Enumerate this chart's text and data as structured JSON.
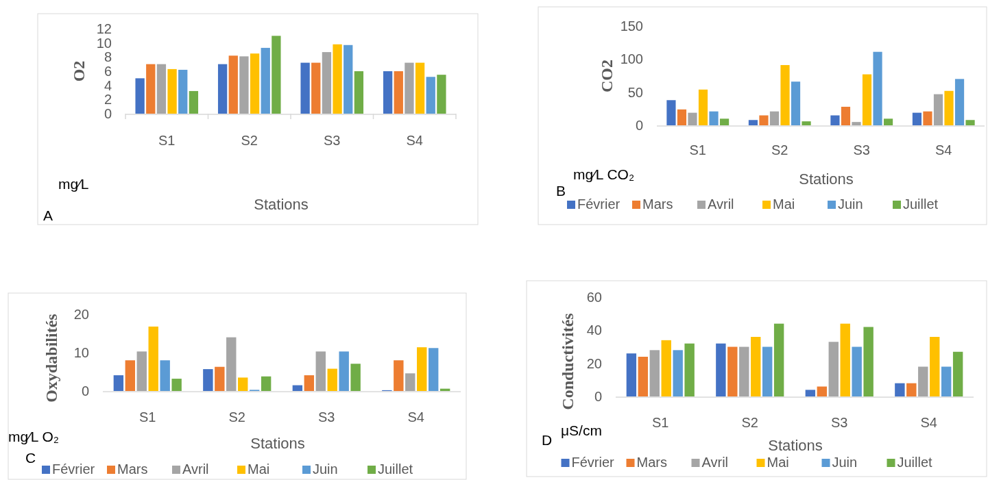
{
  "chart_data": [
    {
      "type": "bar",
      "ylabel": "O2",
      "xlabel": "Stations",
      "categories": [
        "S1",
        "S2",
        "S3",
        "S4"
      ],
      "ylim": [
        0,
        12
      ],
      "yticks": [
        0,
        2,
        4,
        6,
        8,
        10,
        12
      ],
      "grid": false,
      "legend": false,
      "annotations": [
        "mg⁄L",
        "A"
      ],
      "series": [
        {
          "color": "#4472c4",
          "values": [
            5,
            7,
            7.2,
            6
          ]
        },
        {
          "color": "#ed7d31",
          "values": [
            7,
            8.2,
            7.2,
            6
          ]
        },
        {
          "color": "#a5a5a5",
          "values": [
            7,
            8.1,
            8.7,
            7.2
          ]
        },
        {
          "color": "#ffc000",
          "values": [
            6.3,
            8.5,
            9.8,
            7.2
          ]
        },
        {
          "color": "#5b9bd5",
          "values": [
            6.2,
            9.3,
            9.7,
            5.2
          ]
        },
        {
          "color": "#70ad47",
          "values": [
            3.2,
            11,
            6,
            5.5
          ]
        }
      ]
    },
    {
      "type": "bar",
      "ylabel": "CO2",
      "xlabel": "Stations",
      "categories": [
        "S1",
        "S2",
        "S3",
        "S4"
      ],
      "ylim": [
        0,
        150
      ],
      "yticks": [
        0,
        50,
        100,
        150
      ],
      "grid": false,
      "legend": "bottom",
      "annotations": [
        "mg⁄L CO₂",
        "B"
      ],
      "series": [
        {
          "name": "Février",
          "color": "#4472c4",
          "values": [
            38,
            8,
            15,
            19
          ]
        },
        {
          "name": "Mars",
          "color": "#ed7d31",
          "values": [
            24,
            15,
            28,
            21
          ]
        },
        {
          "name": "Avril",
          "color": "#a5a5a5",
          "values": [
            19,
            21,
            5,
            47
          ]
        },
        {
          "name": "Mai",
          "color": "#ffc000",
          "values": [
            54,
            91,
            77,
            52
          ]
        },
        {
          "name": "Juin",
          "color": "#5b9bd5",
          "values": [
            21,
            66,
            111,
            70
          ]
        },
        {
          "name": "Juillet",
          "color": "#70ad47",
          "values": [
            10,
            6,
            10,
            8
          ]
        }
      ]
    },
    {
      "type": "bar",
      "ylabel": "Oxydabilités",
      "xlabel": "Stations",
      "categories": [
        "S1",
        "S2",
        "S3",
        "S4"
      ],
      "ylim": [
        0,
        20
      ],
      "yticks": [
        0,
        10,
        20
      ],
      "grid": false,
      "legend": "bottom",
      "annotations": [
        "mg⁄L O₂",
        "C"
      ],
      "series": [
        {
          "name": "Février",
          "color": "#4472c4",
          "values": [
            4.1,
            5.7,
            1.5,
            0.2
          ]
        },
        {
          "name": "Mars",
          "color": "#ed7d31",
          "values": [
            8,
            6.3,
            4.1,
            8
          ]
        },
        {
          "name": "Avril",
          "color": "#a5a5a5",
          "values": [
            10.3,
            14,
            10.3,
            4.6
          ]
        },
        {
          "name": "Mai",
          "color": "#ffc000",
          "values": [
            16.8,
            3.5,
            5.8,
            11.4
          ]
        },
        {
          "name": "Juin",
          "color": "#5b9bd5",
          "values": [
            8,
            0.3,
            10.3,
            11.2
          ]
        },
        {
          "name": "Juillet",
          "color": "#70ad47",
          "values": [
            3.2,
            3.8,
            7.1,
            0.6
          ]
        }
      ]
    },
    {
      "type": "bar",
      "ylabel": "Conductivités",
      "xlabel": "Stations",
      "categories": [
        "S1",
        "S2",
        "S3",
        "S4"
      ],
      "ylim": [
        0,
        60
      ],
      "yticks": [
        0,
        20,
        40,
        60
      ],
      "grid": false,
      "legend": "bottom",
      "annotations": [
        "μS/cm",
        "D"
      ],
      "series": [
        {
          "name": "Février",
          "color": "#4472c4",
          "values": [
            26,
            32,
            4,
            8
          ]
        },
        {
          "name": "Mars",
          "color": "#ed7d31",
          "values": [
            24,
            30,
            6,
            8
          ]
        },
        {
          "name": "Avril",
          "color": "#a5a5a5",
          "values": [
            28,
            30,
            33,
            18
          ]
        },
        {
          "name": "Mai",
          "color": "#ffc000",
          "values": [
            34,
            36,
            44,
            36
          ]
        },
        {
          "name": "Juin",
          "color": "#5b9bd5",
          "values": [
            28,
            30,
            30,
            18
          ]
        },
        {
          "name": "Juillet",
          "color": "#70ad47",
          "values": [
            32,
            44,
            42,
            27
          ]
        }
      ]
    }
  ]
}
